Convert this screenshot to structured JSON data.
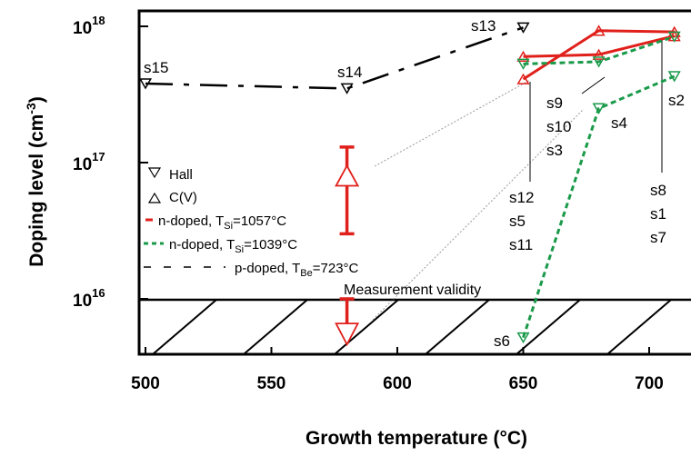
{
  "chart_data": {
    "type": "line",
    "xlabel": "Growth temperature (°C)",
    "ylabel": "Doping level (cm-3)",
    "ylabel_main": "Doping level (cm",
    "ylabel_sup": "-3",
    "ylabel_close": ")",
    "y_scale": "log",
    "xlim": [
      495,
      712
    ],
    "ylim": [
      4500000000000000.0,
      1.1e+18
    ],
    "x_ticks": [
      500,
      550,
      600,
      650,
      700
    ],
    "y_ticks": [
      {
        "value": 1e+16,
        "base": "10",
        "exp": "16"
      },
      {
        "value": 1e+17,
        "base": "10",
        "exp": "17"
      },
      {
        "value": 1e+18,
        "base": "10",
        "exp": "18"
      }
    ],
    "legend": [
      {
        "marker": "triangle-down",
        "text": "Hall"
      },
      {
        "marker": "triangle-up",
        "text": "C(V)"
      },
      {
        "marker": "line",
        "color": "#e0201b",
        "dash": "solid",
        "pre": "n-doped, T",
        "sub": "Si",
        "post": "=1057°C"
      },
      {
        "marker": "line",
        "color": "#1a9a4a",
        "dash": "dashed",
        "pre": "n-doped, T",
        "sub": "Si",
        "post": "=1039°C"
      },
      {
        "marker": "line",
        "color": "#000000",
        "dash": "longdash",
        "pre": "p-doped, T",
        "sub": "Be",
        "post": "=723°C"
      }
    ],
    "legend_position": "left-center",
    "series": [
      {
        "color": "#000000",
        "dash": "longdash",
        "points": [
          {
            "x": 500,
            "y": 3.8e+17,
            "marker": "down",
            "label": "s15"
          },
          {
            "x": 580,
            "y": 3.5e+17,
            "marker": "down",
            "label": "s14"
          },
          {
            "x": 650,
            "y": 9.8e+17,
            "marker": "down",
            "label": "s13"
          }
        ]
      },
      {
        "color": "#e0201b",
        "dash": "solid",
        "points": [
          {
            "x": 650,
            "y": 6e+17,
            "marker": "up"
          },
          {
            "x": 680,
            "y": 6.2e+17,
            "marker": "up"
          },
          {
            "x": 710,
            "y": 8.5e+17,
            "marker": "up"
          }
        ]
      },
      {
        "color": "#e0201b",
        "dash": "solid",
        "points": [
          {
            "x": 650,
            "y": 4.1e+17,
            "marker": "up"
          },
          {
            "x": 680,
            "y": 9.3e+17,
            "marker": "up"
          },
          {
            "x": 710,
            "y": 9.1e+17,
            "marker": "up"
          }
        ]
      },
      {
        "color": "#1a9a4a",
        "dash": "dashed",
        "points": [
          {
            "x": 650,
            "y": 5.3e+17,
            "marker": "down"
          },
          {
            "x": 680,
            "y": 5.5e+17,
            "marker": "down"
          },
          {
            "x": 710,
            "y": 8.4e+17,
            "marker": "down"
          }
        ]
      },
      {
        "color": "#1a9a4a",
        "dash": "dashed",
        "points": [
          {
            "x": 650,
            "y": 5200000000000000.0,
            "marker": "down",
            "label": "s6"
          },
          {
            "x": 680,
            "y": 2.5e+17,
            "marker": "down",
            "label": "s4"
          },
          {
            "x": 710,
            "y": 4.3e+17,
            "marker": "down",
            "label": "s2"
          }
        ]
      }
    ],
    "error_bars": [
      {
        "x": 580,
        "y": 8e+16,
        "ymin": 3e+16,
        "ymax": 1.3e+17,
        "color": "#e0201b",
        "marker": "up"
      },
      {
        "x": 580,
        "y": 5000000000000000.0,
        "ymin": 5000000000000000.0,
        "ymax": 1e+16,
        "color": "#e0201b",
        "marker": "down"
      }
    ],
    "group_labels": [
      {
        "lines": [
          "s9",
          "s10",
          "s3"
        ]
      },
      {
        "lines": [
          "s12",
          "s5",
          "s11"
        ]
      },
      {
        "lines": [
          "s8",
          "s1",
          "s7"
        ]
      }
    ],
    "shaded_region": {
      "ymax": 1e+16,
      "style": "hatched",
      "label": "Measurement validity"
    }
  }
}
